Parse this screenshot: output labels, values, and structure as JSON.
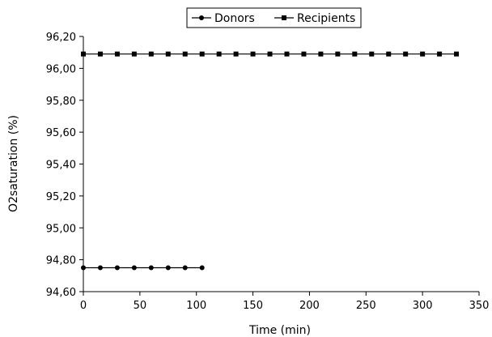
{
  "chart_data": {
    "type": "line",
    "xlabel": "Time (min)",
    "ylabel": "O2saturation (%)",
    "xlim": [
      0,
      350
    ],
    "ylim": [
      94.6,
      96.2
    ],
    "x_ticks": [
      "0",
      "50",
      "100",
      "150",
      "200",
      "250",
      "300",
      "350"
    ],
    "y_ticks": [
      "94,60",
      "94,80",
      "95,00",
      "95,20",
      "95,40",
      "95,60",
      "95,80",
      "96,00",
      "96,20"
    ],
    "grid": false,
    "legend_position": "top",
    "series": [
      {
        "name": "Donors",
        "marker": "circle",
        "color": "#000000",
        "x": [
          0,
          15,
          30,
          45,
          60,
          75,
          90,
          105
        ],
        "y": [
          94.75,
          94.75,
          94.75,
          94.75,
          94.75,
          94.75,
          94.75,
          94.75
        ]
      },
      {
        "name": "Recipients",
        "marker": "square",
        "color": "#000000",
        "x": [
          0,
          15,
          30,
          45,
          60,
          75,
          90,
          105,
          120,
          135,
          150,
          165,
          180,
          195,
          210,
          225,
          240,
          255,
          270,
          285,
          300,
          315,
          330
        ],
        "y": [
          96.09,
          96.09,
          96.09,
          96.09,
          96.09,
          96.09,
          96.09,
          96.09,
          96.09,
          96.09,
          96.09,
          96.09,
          96.09,
          96.09,
          96.09,
          96.09,
          96.09,
          96.09,
          96.09,
          96.09,
          96.09,
          96.09,
          96.09
        ]
      }
    ]
  }
}
